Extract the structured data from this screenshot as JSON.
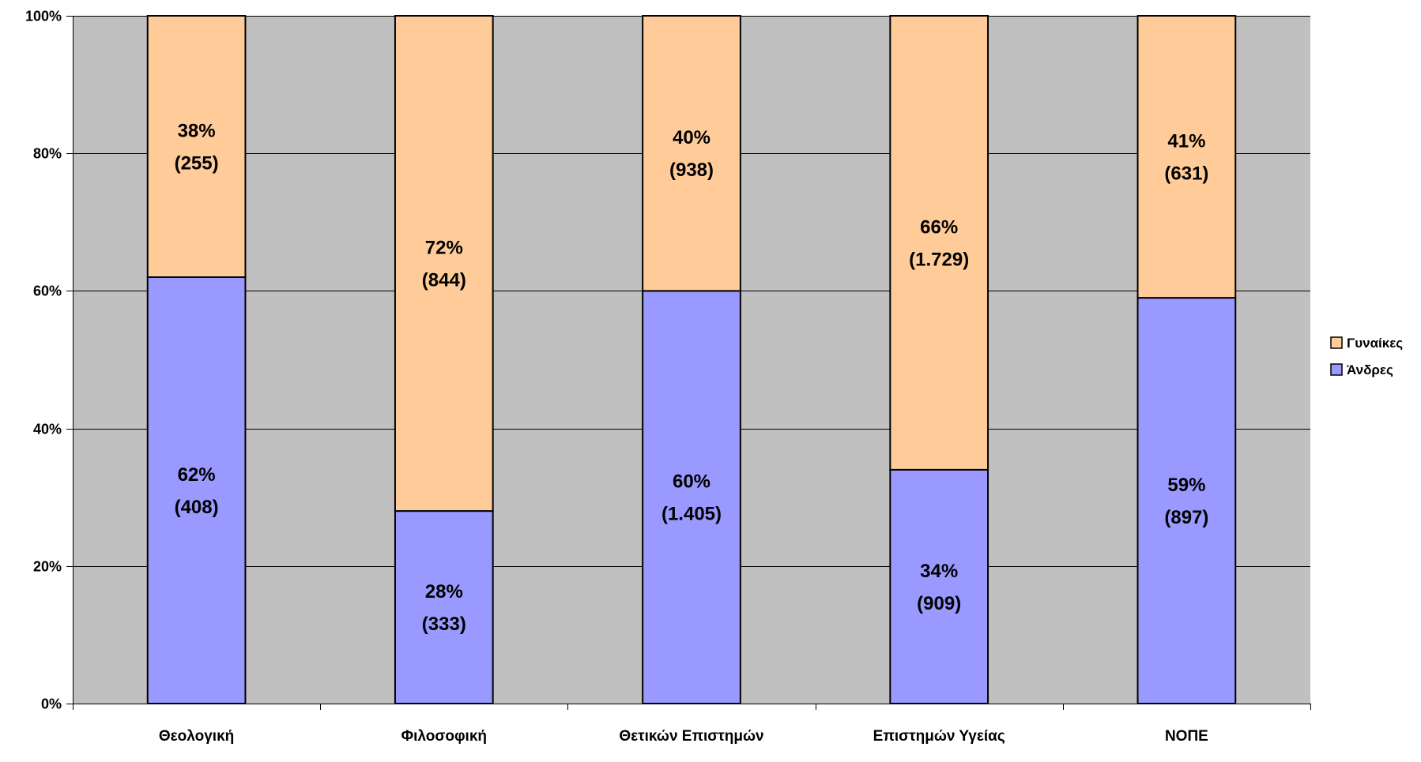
{
  "chart_data": {
    "type": "bar",
    "stacked": "percent",
    "categories": [
      "Θεολογική",
      "Φιλοσοφική",
      "Θετικών Επιστημών",
      "Επιστημών Υγείας",
      "ΝΟΠΕ"
    ],
    "series": [
      {
        "name": "Άνδρες",
        "values": [
          62,
          28,
          60,
          34,
          59
        ],
        "counts": [
          408,
          333,
          1405,
          909,
          897
        ],
        "color": "#9999FF"
      },
      {
        "name": "Γυναίκες",
        "values": [
          38,
          72,
          40,
          66,
          41
        ],
        "counts": [
          255,
          844,
          938,
          1729,
          631
        ],
        "color": "#FFCC99"
      }
    ],
    "yticks": [
      "0%",
      "20%",
      "40%",
      "60%",
      "80%",
      "100%"
    ],
    "ylim": [
      0,
      100
    ],
    "grid": true,
    "legend": {
      "position": "right",
      "order": [
        "Γυναίκες",
        "Άνδρες"
      ]
    },
    "plot_background": "#C0C0C0",
    "title": "",
    "xlabel": "",
    "ylabel": ""
  }
}
